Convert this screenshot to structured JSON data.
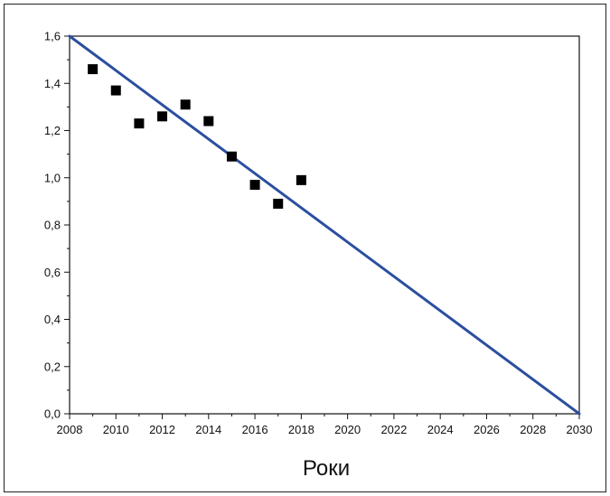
{
  "chart_data": {
    "type": "scatter",
    "title": "",
    "xlabel": "Роки",
    "ylabel": "",
    "xlim": [
      2008,
      2030
    ],
    "ylim": [
      0,
      1.6
    ],
    "x_ticks": [
      "2008",
      "2010",
      "2012",
      "2014",
      "2016",
      "2018",
      "2020",
      "2022",
      "2024",
      "2026",
      "2028",
      "2030"
    ],
    "y_ticks": [
      "0,0",
      "0,2",
      "0,4",
      "0,6",
      "0,8",
      "1,0",
      "1,2",
      "1,4",
      "1,6"
    ],
    "grid": false,
    "legend": "none",
    "series": [
      {
        "type": "scatter",
        "marker": "square",
        "color": "#000000",
        "points": [
          {
            "x": 2009,
            "y": 1.46
          },
          {
            "x": 2010,
            "y": 1.37
          },
          {
            "x": 2011,
            "y": 1.23
          },
          {
            "x": 2012,
            "y": 1.26
          },
          {
            "x": 2013,
            "y": 1.31
          },
          {
            "x": 2014,
            "y": 1.24
          },
          {
            "x": 2015,
            "y": 1.09
          },
          {
            "x": 2016,
            "y": 0.97
          },
          {
            "x": 2017,
            "y": 0.89
          },
          {
            "x": 2018,
            "y": 0.99
          }
        ]
      },
      {
        "type": "line",
        "color": "#2b4ea0",
        "points": [
          {
            "x": 2008,
            "y": 1.6
          },
          {
            "x": 2030,
            "y": 0.0
          }
        ]
      }
    ]
  }
}
